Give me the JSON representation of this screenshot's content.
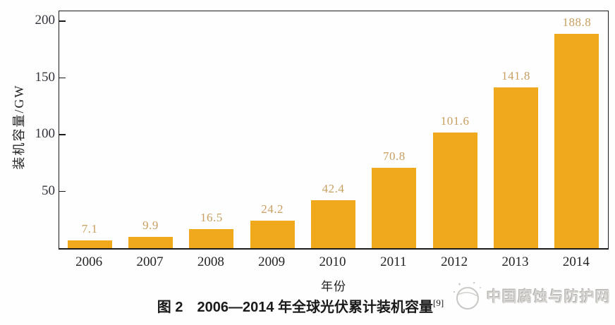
{
  "chart_data": {
    "type": "bar",
    "title": "图 2　2006—2014 年全球光伏累计装机容量",
    "title_ref": "[9]",
    "categories": [
      "2006",
      "2007",
      "2008",
      "2009",
      "2010",
      "2011",
      "2012",
      "2013",
      "2014"
    ],
    "values": [
      7.1,
      9.9,
      16.5,
      24.2,
      42.4,
      70.8,
      101.6,
      141.8,
      188.8
    ],
    "xlabel": "年份",
    "ylabel": "装机容量/GW",
    "yticks": [
      50,
      100,
      150,
      200
    ],
    "ylim": [
      0,
      208
    ],
    "grid": false,
    "legend": null,
    "bar_color": "#F0A81C",
    "value_label_color": "#C89F60",
    "axis_color": "#1a1a1a"
  },
  "watermark": {
    "logo": "globe-icon",
    "text": "中国腐蚀与防护网"
  }
}
